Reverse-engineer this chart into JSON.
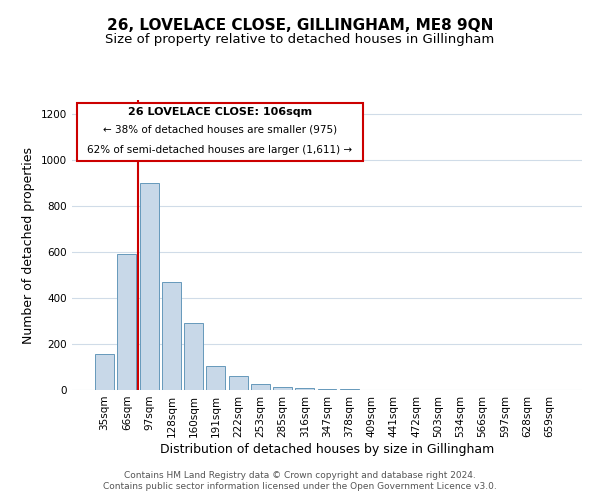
{
  "title": "26, LOVELACE CLOSE, GILLINGHAM, ME8 9QN",
  "subtitle": "Size of property relative to detached houses in Gillingham",
  "xlabel": "Distribution of detached houses by size in Gillingham",
  "ylabel": "Number of detached properties",
  "bar_labels": [
    "35sqm",
    "66sqm",
    "97sqm",
    "128sqm",
    "160sqm",
    "191sqm",
    "222sqm",
    "253sqm",
    "285sqm",
    "316sqm",
    "347sqm",
    "378sqm",
    "409sqm",
    "441sqm",
    "472sqm",
    "503sqm",
    "534sqm",
    "566sqm",
    "597sqm",
    "628sqm",
    "659sqm"
  ],
  "bar_values": [
    155,
    590,
    900,
    470,
    290,
    105,
    62,
    28,
    15,
    8,
    5,
    3,
    2,
    1,
    1,
    0,
    0,
    0,
    0,
    0,
    0
  ],
  "bar_color": "#c8d8e8",
  "bar_edge_color": "#6699bb",
  "ylim": [
    0,
    1260
  ],
  "yticks": [
    0,
    200,
    400,
    600,
    800,
    1000,
    1200
  ],
  "property_line_color": "#cc0000",
  "annotation_text_line1": "26 LOVELACE CLOSE: 106sqm",
  "annotation_text_line2": "← 38% of detached houses are smaller (975)",
  "annotation_text_line3": "62% of semi-detached houses are larger (1,611) →",
  "footer_line1": "Contains HM Land Registry data © Crown copyright and database right 2024.",
  "footer_line2": "Contains public sector information licensed under the Open Government Licence v3.0.",
  "background_color": "#ffffff",
  "grid_color": "#d0dce8",
  "title_fontsize": 11,
  "subtitle_fontsize": 9.5,
  "axis_label_fontsize": 9,
  "tick_fontsize": 7.5,
  "footer_fontsize": 6.5
}
